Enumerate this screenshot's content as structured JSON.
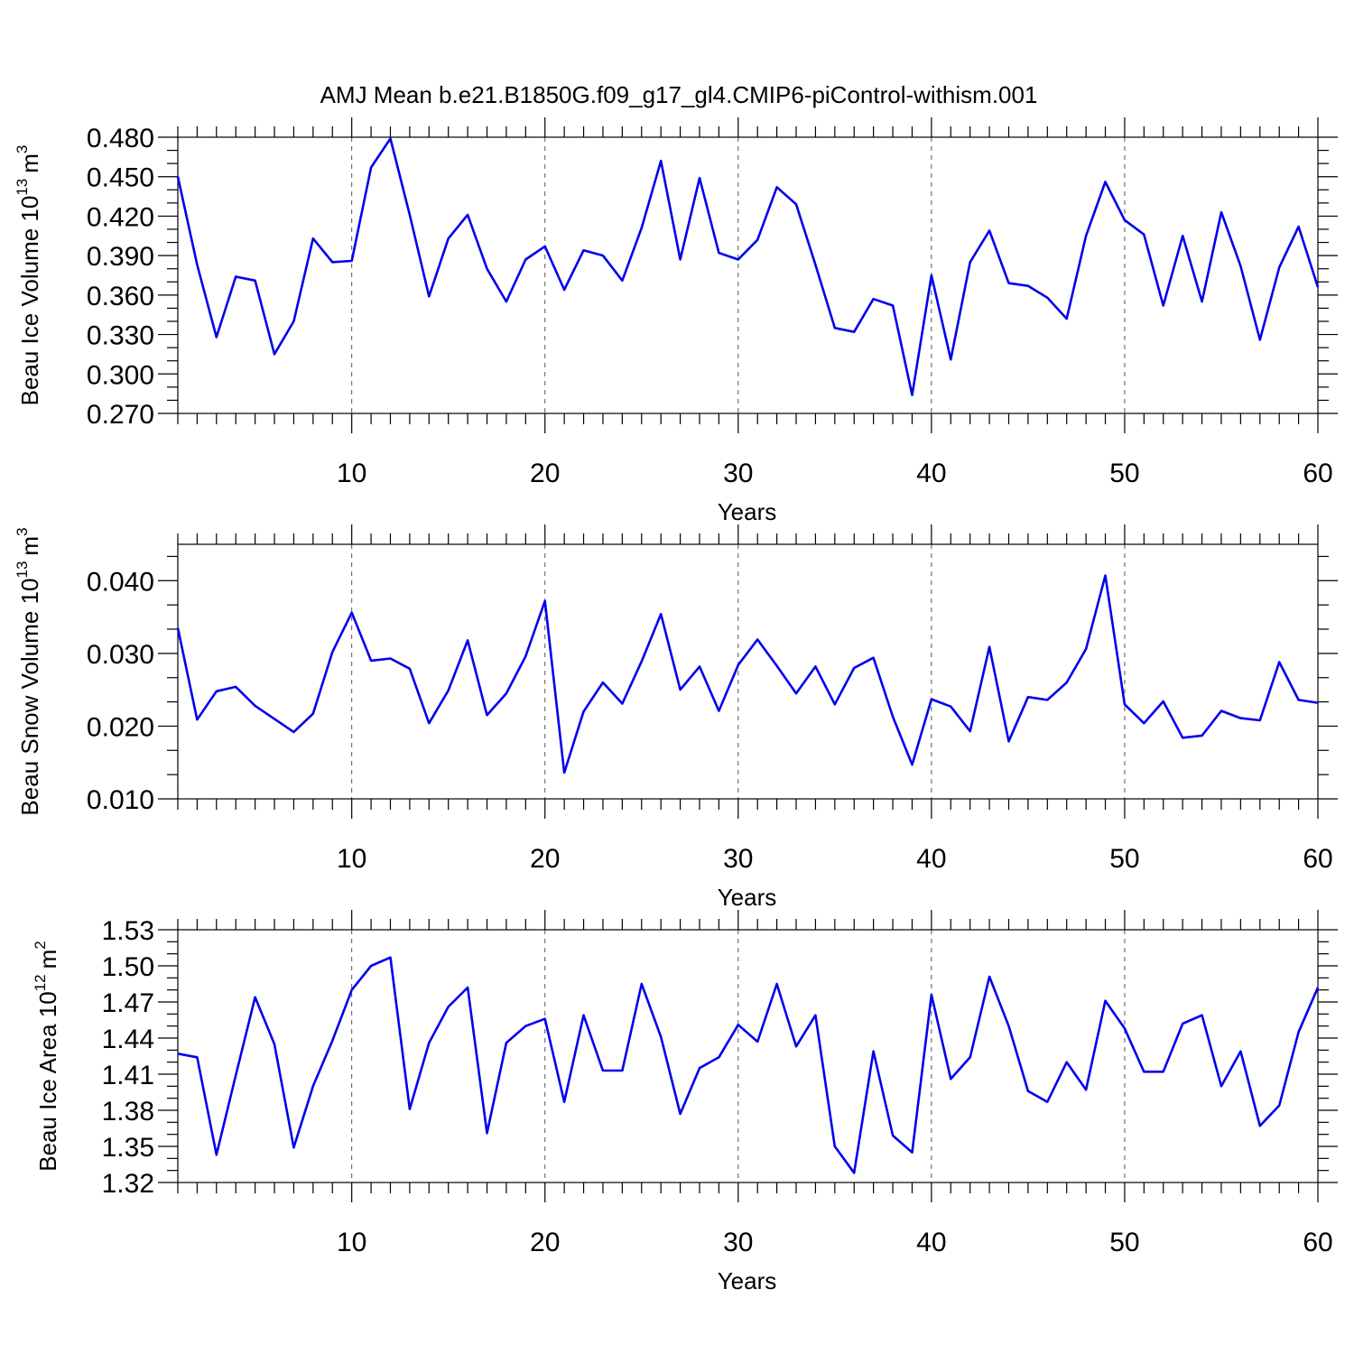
{
  "title": "AMJ Mean b.e21.B1850G.f09_g17_gl4.CMIP6-piControl-withism.001",
  "line_color": "#0000ee",
  "chart_data": [
    {
      "type": "line",
      "ylabel_main": "Beau Ice Volume 10",
      "ylabel_exp": "13",
      "ylabel_unit": "m",
      "ylabel_unit_exp": "3",
      "xlabel": "Years",
      "xlim": [
        1,
        60
      ],
      "ylim": [
        0.27,
        0.48
      ],
      "grid": "vertical dashed at major ticks",
      "x_ticks": [
        10,
        20,
        30,
        40,
        50,
        60
      ],
      "y_ticks": [
        0.27,
        0.3,
        0.33,
        0.36,
        0.39,
        0.42,
        0.45,
        0.48
      ],
      "x_tick_labels": [
        "10",
        "20",
        "30",
        "40",
        "50",
        "60"
      ],
      "y_tick_labels": [
        "0.270",
        "0.300",
        "0.330",
        "0.360",
        "0.390",
        "0.420",
        "0.450",
        "0.480"
      ],
      "x": [
        1,
        2,
        3,
        4,
        5,
        6,
        7,
        8,
        9,
        10,
        11,
        12,
        13,
        14,
        15,
        16,
        17,
        18,
        19,
        20,
        21,
        22,
        23,
        24,
        25,
        26,
        27,
        28,
        29,
        30,
        31,
        32,
        33,
        34,
        35,
        36,
        37,
        38,
        39,
        40,
        41,
        42,
        43,
        44,
        45,
        46,
        47,
        48,
        49,
        50,
        51,
        52,
        53,
        54,
        55,
        56,
        57,
        58,
        59,
        60
      ],
      "values": [
        0.45,
        0.383,
        0.328,
        0.374,
        0.371,
        0.315,
        0.34,
        0.403,
        0.385,
        0.386,
        0.457,
        0.479,
        0.421,
        0.359,
        0.403,
        0.421,
        0.38,
        0.355,
        0.387,
        0.397,
        0.364,
        0.394,
        0.39,
        0.371,
        0.411,
        0.462,
        0.387,
        0.449,
        0.392,
        0.387,
        0.402,
        0.442,
        0.429,
        0.383,
        0.335,
        0.332,
        0.357,
        0.352,
        0.284,
        0.375,
        0.311,
        0.385,
        0.409,
        0.369,
        0.367,
        0.358,
        0.342,
        0.405,
        0.446,
        0.417,
        0.406,
        0.352,
        0.405,
        0.355,
        0.423,
        0.382,
        0.326,
        0.381,
        0.412,
        0.366
      ]
    },
    {
      "type": "line",
      "ylabel_main": "Beau Snow Volume 10",
      "ylabel_exp": "13",
      "ylabel_unit": "m",
      "ylabel_unit_exp": "3",
      "xlabel": "Years",
      "xlim": [
        1,
        60
      ],
      "ylim": [
        0.01,
        0.045
      ],
      "grid": "vertical dashed at major ticks",
      "x_ticks": [
        10,
        20,
        30,
        40,
        50,
        60
      ],
      "y_ticks": [
        0.01,
        0.02,
        0.03,
        0.04
      ],
      "x_tick_labels": [
        "10",
        "20",
        "30",
        "40",
        "50",
        "60"
      ],
      "y_tick_labels": [
        "0.010",
        "0.020",
        "0.030",
        "0.040"
      ],
      "x": [
        1,
        2,
        3,
        4,
        5,
        6,
        7,
        8,
        9,
        10,
        11,
        12,
        13,
        14,
        15,
        16,
        17,
        18,
        19,
        20,
        21,
        22,
        23,
        24,
        25,
        26,
        27,
        28,
        29,
        30,
        31,
        32,
        33,
        34,
        35,
        36,
        37,
        38,
        39,
        40,
        41,
        42,
        43,
        44,
        45,
        46,
        47,
        48,
        49,
        50,
        51,
        52,
        53,
        54,
        55,
        56,
        57,
        58,
        59,
        60
      ],
      "values": [
        0.0335,
        0.0209,
        0.0248,
        0.0254,
        0.0228,
        0.021,
        0.0192,
        0.0217,
        0.0302,
        0.0356,
        0.029,
        0.0293,
        0.0279,
        0.0204,
        0.0249,
        0.0318,
        0.0215,
        0.0245,
        0.0296,
        0.0372,
        0.0136,
        0.022,
        0.026,
        0.0231,
        0.0289,
        0.0354,
        0.025,
        0.0282,
        0.0221,
        0.0284,
        0.0319,
        0.0283,
        0.0245,
        0.0282,
        0.023,
        0.028,
        0.0294,
        0.0213,
        0.0147,
        0.0237,
        0.0227,
        0.0193,
        0.0309,
        0.0179,
        0.024,
        0.0236,
        0.026,
        0.0306,
        0.0407,
        0.023,
        0.0204,
        0.0234,
        0.0184,
        0.0187,
        0.0221,
        0.0211,
        0.0208,
        0.0288,
        0.0236,
        0.0232
      ]
    },
    {
      "type": "line",
      "ylabel_main": "Beau Ice Area 10",
      "ylabel_exp": "12",
      "ylabel_unit": "m",
      "ylabel_unit_exp": "2",
      "xlabel": "Years",
      "xlim": [
        1,
        60
      ],
      "ylim": [
        1.32,
        1.53
      ],
      "grid": "vertical dashed at major ticks",
      "x_ticks": [
        10,
        20,
        30,
        40,
        50,
        60
      ],
      "y_ticks": [
        1.32,
        1.35,
        1.38,
        1.41,
        1.44,
        1.47,
        1.5,
        1.53
      ],
      "x_tick_labels": [
        "10",
        "20",
        "30",
        "40",
        "50",
        "60"
      ],
      "y_tick_labels": [
        "1.32",
        "1.35",
        "1.38",
        "1.41",
        "1.44",
        "1.47",
        "1.50",
        "1.53"
      ],
      "x": [
        1,
        2,
        3,
        4,
        5,
        6,
        7,
        8,
        9,
        10,
        11,
        12,
        13,
        14,
        15,
        16,
        17,
        18,
        19,
        20,
        21,
        22,
        23,
        24,
        25,
        26,
        27,
        28,
        29,
        30,
        31,
        32,
        33,
        34,
        35,
        36,
        37,
        38,
        39,
        40,
        41,
        42,
        43,
        44,
        45,
        46,
        47,
        48,
        49,
        50,
        51,
        52,
        53,
        54,
        55,
        56,
        57,
        58,
        59,
        60
      ],
      "values": [
        1.427,
        1.424,
        1.343,
        1.409,
        1.474,
        1.435,
        1.349,
        1.4,
        1.438,
        1.48,
        1.5,
        1.507,
        1.381,
        1.436,
        1.466,
        1.482,
        1.361,
        1.436,
        1.45,
        1.456,
        1.387,
        1.459,
        1.413,
        1.413,
        1.485,
        1.441,
        1.377,
        1.415,
        1.424,
        1.451,
        1.437,
        1.485,
        1.433,
        1.459,
        1.35,
        1.328,
        1.429,
        1.359,
        1.345,
        1.476,
        1.406,
        1.424,
        1.491,
        1.45,
        1.396,
        1.387,
        1.42,
        1.397,
        1.471,
        1.448,
        1.412,
        1.412,
        1.452,
        1.459,
        1.4,
        1.429,
        1.367,
        1.384,
        1.445,
        1.482
      ]
    }
  ]
}
